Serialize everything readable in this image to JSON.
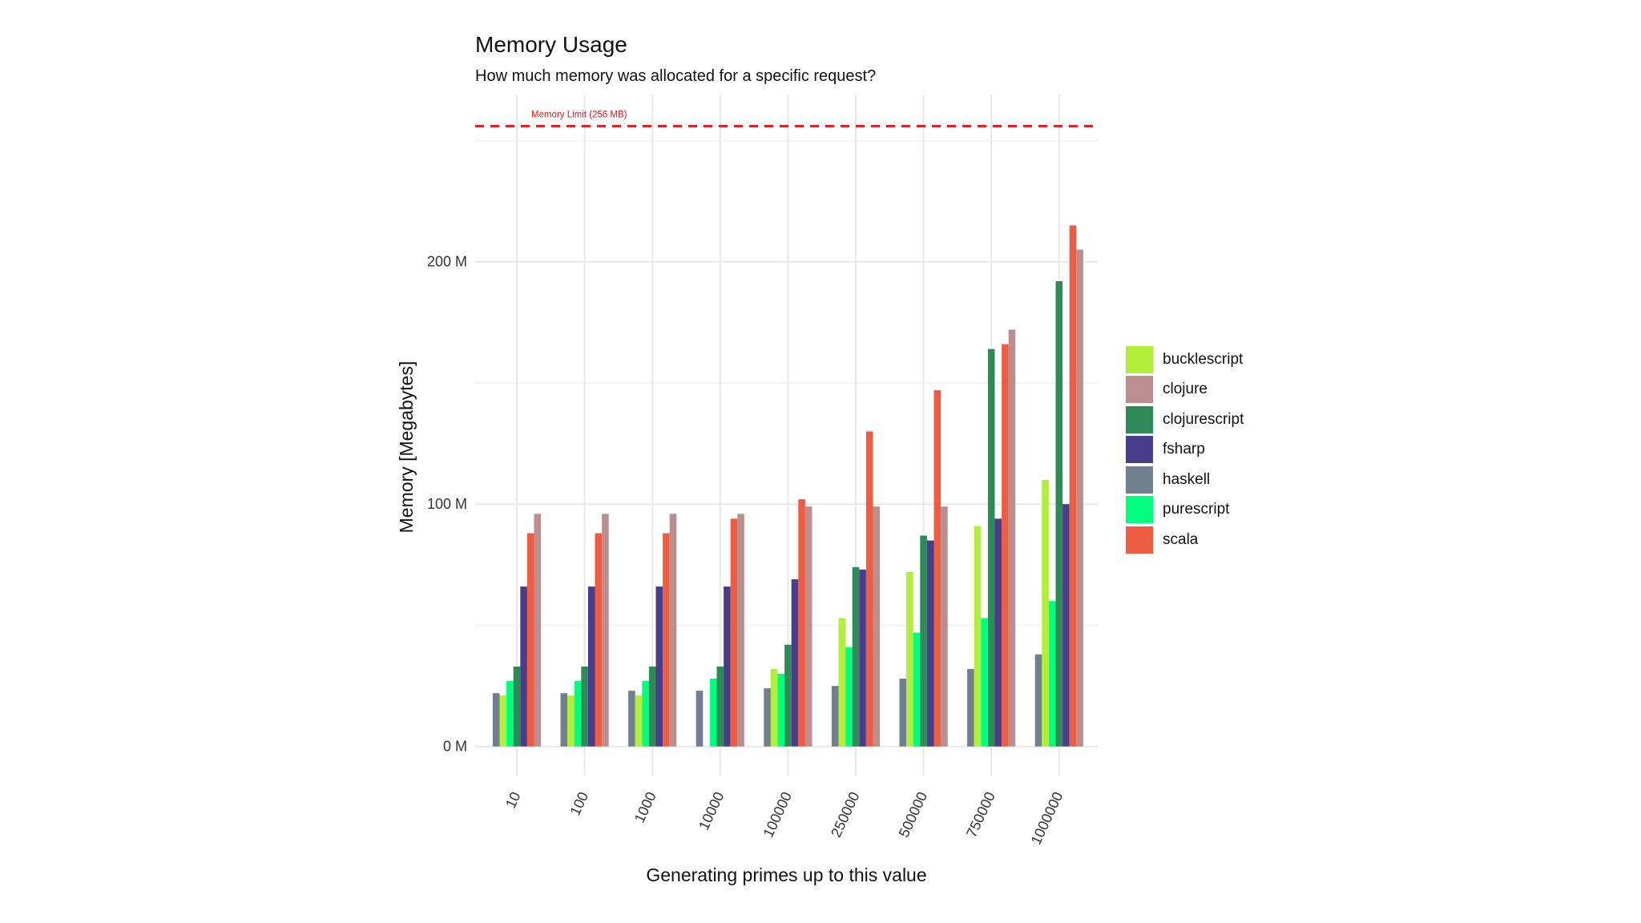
{
  "chart_data": {
    "type": "bar",
    "title": "Memory Usage",
    "subtitle": "How much memory was allocated for a specific request?",
    "xlabel": "Generating primes up to this value",
    "ylabel": "Memory [Megabytes]",
    "categories": [
      "10",
      "100",
      "1000",
      "10000",
      "100000",
      "250000",
      "500000",
      "750000",
      "1000000"
    ],
    "y_ticks": [
      {
        "value": 0,
        "label": "0 M"
      },
      {
        "value": 100,
        "label": "100 M"
      },
      {
        "value": 200,
        "label": "200 M"
      }
    ],
    "ylim": [
      -12,
      269
    ],
    "grid": true,
    "legend_position": "right",
    "series": [
      {
        "name": "haskell",
        "color": "#708090",
        "values": [
          22,
          22,
          23,
          23,
          24,
          25,
          28,
          32,
          38
        ]
      },
      {
        "name": "bucklescript",
        "color": "#b3ee3a",
        "values": [
          21,
          21,
          21,
          null,
          32,
          53,
          72,
          91,
          110
        ]
      },
      {
        "name": "purescript",
        "color": "#00ff7f",
        "values": [
          27,
          27,
          27,
          28,
          30,
          41,
          47,
          53,
          60
        ]
      },
      {
        "name": "clojurescript",
        "color": "#2e8b57",
        "values": [
          33,
          33,
          33,
          33,
          42,
          74,
          87,
          164,
          192
        ]
      },
      {
        "name": "fsharp",
        "color": "#483d8b",
        "values": [
          66,
          66,
          66,
          66,
          69,
          73,
          85,
          94,
          100
        ]
      },
      {
        "name": "scala",
        "color": "#ee5c42",
        "values": [
          88,
          88,
          88,
          94,
          102,
          130,
          147,
          166,
          215
        ]
      },
      {
        "name": "clojure",
        "color": "#bc8f8f",
        "values": [
          96,
          96,
          96,
          96,
          99,
          99,
          99,
          172,
          205
        ]
      }
    ],
    "legend_order": [
      "bucklescript",
      "clojure",
      "clojurescript",
      "fsharp",
      "haskell",
      "purescript",
      "scala"
    ],
    "reference_line": {
      "value": 256,
      "label": "Memory Limit (256 MB)",
      "color": "#e41a1c"
    }
  }
}
